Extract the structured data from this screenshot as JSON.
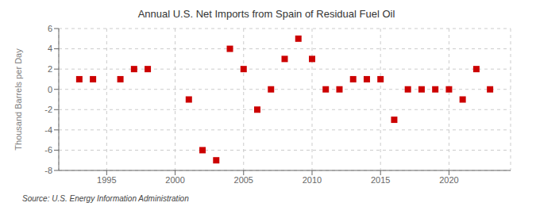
{
  "chart_data": {
    "type": "scatter",
    "title": "Annual U.S. Net Imports from Spain of Residual Fuel Oil",
    "ylabel": "Thousand Barrels per Day",
    "annotations": [
      "Source: U.S. Energy Information Administration"
    ],
    "x": [
      1993,
      1994,
      1996,
      1997,
      1998,
      2001,
      2002,
      2003,
      2004,
      2005,
      2006,
      2007,
      2008,
      2009,
      2010,
      2011,
      2012,
      2013,
      2014,
      2015,
      2016,
      2017,
      2018,
      2019,
      2020,
      2021,
      2022,
      2023
    ],
    "values": [
      1,
      1,
      1,
      2,
      2,
      -1,
      -6,
      -7,
      4,
      2,
      -2,
      0,
      3,
      5,
      3,
      0,
      0,
      1,
      1,
      1,
      -3,
      0,
      0,
      0,
      0,
      -1,
      2,
      0
    ],
    "color": "#cc0000",
    "marker": "square",
    "xlim": [
      1991.5,
      2024.5
    ],
    "xticks": [
      1995,
      2000,
      2005,
      2010,
      2015,
      2020
    ],
    "ylim": [
      -8,
      6
    ],
    "yticks": [
      -8,
      -6,
      -4,
      -2,
      0,
      2,
      4,
      6
    ],
    "grid": true
  }
}
